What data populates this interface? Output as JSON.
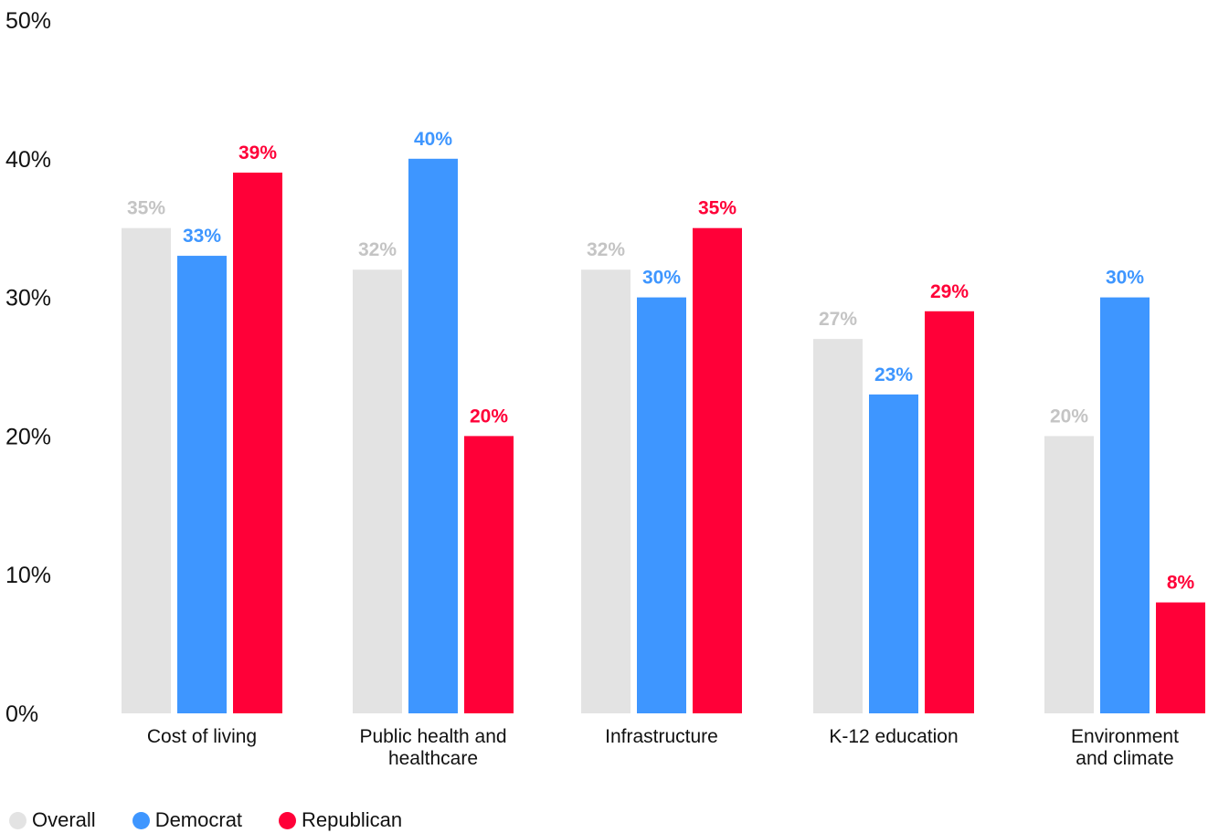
{
  "chart_data": {
    "type": "bar",
    "categories": [
      [
        "Cost of living"
      ],
      [
        "Public health and",
        "healthcare"
      ],
      [
        "Infrastructure"
      ],
      [
        "K-12 education"
      ],
      [
        "Environment",
        "and climate"
      ]
    ],
    "series": [
      {
        "name": "Overall",
        "color": "#e3e3e3",
        "label_color": "#c4c4c4",
        "values": [
          35,
          32,
          32,
          27,
          20
        ],
        "labels": [
          "35%",
          "32%",
          "32%",
          "27%",
          "20%"
        ]
      },
      {
        "name": "Democrat",
        "color": "#3e96ff",
        "label_color": "#3e96ff",
        "values": [
          33,
          40,
          30,
          23,
          30
        ],
        "labels": [
          "33%",
          "40%",
          "30%",
          "23%",
          "30%"
        ]
      },
      {
        "name": "Republican",
        "color": "#ff0038",
        "label_color": "#ff0038",
        "values": [
          39,
          20,
          35,
          29,
          8
        ],
        "labels": [
          "39%",
          "20%",
          "35%",
          "29%",
          "8%"
        ]
      }
    ],
    "yticks": [
      {
        "value": 0,
        "label": "0%"
      },
      {
        "value": 10,
        "label": "10%"
      },
      {
        "value": 20,
        "label": "20%"
      },
      {
        "value": 30,
        "label": "30%"
      },
      {
        "value": 40,
        "label": "40%"
      },
      {
        "value": 50,
        "label": "50%"
      }
    ],
    "ylim": [
      0,
      50
    ],
    "grid": false,
    "legend_position": "bottom-left"
  },
  "legend": [
    {
      "label": "Overall",
      "color": "#e3e3e3"
    },
    {
      "label": "Democrat",
      "color": "#3e96ff"
    },
    {
      "label": "Republican",
      "color": "#ff0038"
    }
  ]
}
